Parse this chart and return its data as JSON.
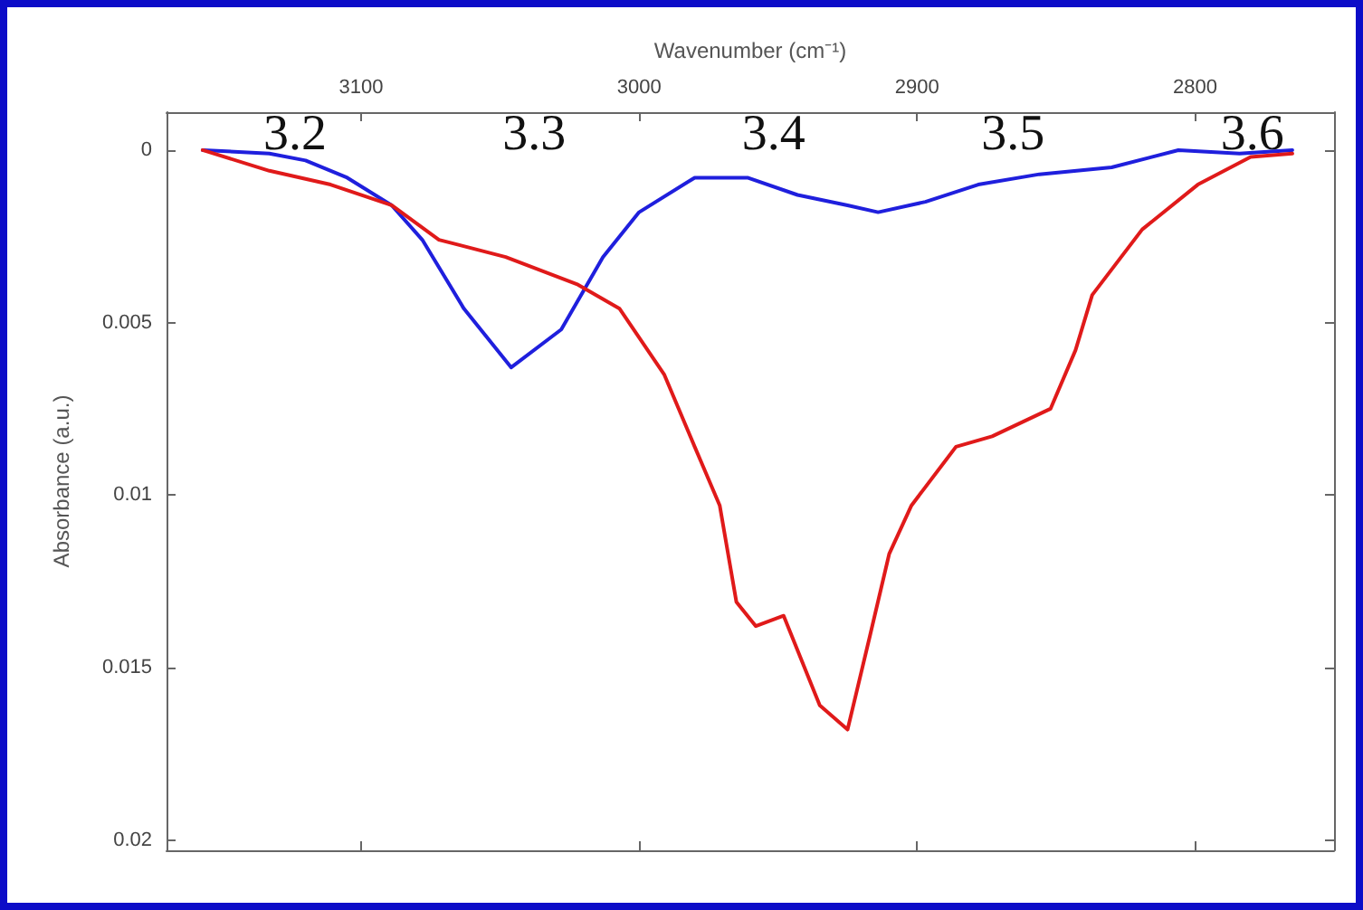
{
  "chart_data": {
    "type": "line",
    "xlabel": "Wavenumber (cm⁻¹)",
    "ylabel": "Absorbance (a.u.)",
    "xlim": [
      3170,
      2750
    ],
    "xticks": [
      3100,
      3000,
      2900,
      2800
    ],
    "ylim": [
      0.0203,
      -0.0011
    ],
    "yticks": [
      0,
      0.005,
      0.01,
      0.015,
      0.02
    ],
    "grid": false,
    "marker": "none",
    "line_style": "solid",
    "series": [
      {
        "color": "#1f1fdd",
        "x": [
          3157,
          3133,
          3120,
          3105,
          3089,
          3078,
          3063,
          3046,
          3028,
          3013,
          3000,
          2980,
          2961,
          2943,
          2925,
          2914,
          2897,
          2878,
          2856,
          2830,
          2806,
          2784,
          2765
        ],
        "values": [
          0.0,
          0.0001,
          0.0003,
          0.0008,
          0.0016,
          0.0026,
          0.0046,
          0.0063,
          0.0052,
          0.0031,
          0.0018,
          0.0008,
          0.0008,
          0.0013,
          0.0016,
          0.0018,
          0.0015,
          0.001,
          0.0007,
          0.0005,
          0.0,
          0.0001,
          0.0
        ]
      },
      {
        "color": "#e01a1a",
        "x": [
          3157,
          3133,
          3111,
          3089,
          3072,
          3048,
          3022,
          3007,
          2991,
          2980,
          2971,
          2965,
          2958,
          2948,
          2935,
          2925,
          2917,
          2910,
          2902,
          2886,
          2873,
          2852,
          2843,
          2837,
          2819,
          2799,
          2780,
          2765
        ],
        "values": [
          0.0,
          0.0006,
          0.001,
          0.0016,
          0.0026,
          0.0031,
          0.0039,
          0.0046,
          0.0065,
          0.0086,
          0.0103,
          0.0131,
          0.0138,
          0.0135,
          0.0161,
          0.0168,
          0.0141,
          0.0117,
          0.0103,
          0.0086,
          0.0083,
          0.0075,
          0.0058,
          0.0042,
          0.0023,
          0.001,
          0.0002,
          0.0001
        ]
      }
    ],
    "annotations": [
      "3.2",
      "3.3",
      "3.4",
      "3.5",
      "3.6"
    ]
  }
}
